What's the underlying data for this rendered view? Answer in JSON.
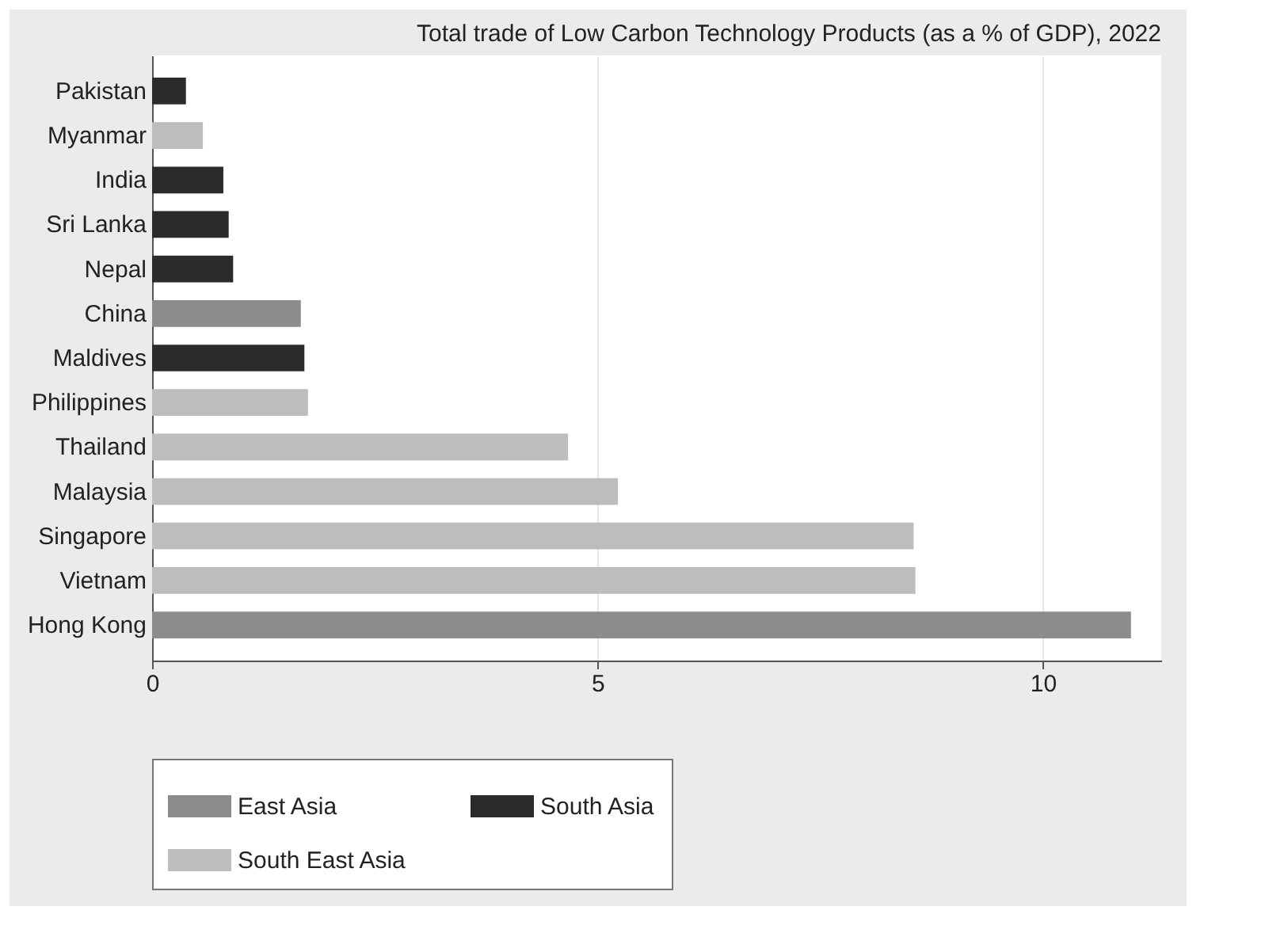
{
  "chart_data": {
    "type": "bar",
    "orientation": "horizontal",
    "title": "Total trade of Low Carbon Technology Products (as a % of GDP), 2022",
    "categories": [
      "Pakistan",
      "Myanmar",
      "India",
      "Sri Lanka",
      "Nepal",
      "China",
      "Maldives",
      "Philippines",
      "Thailand",
      "Malaysia",
      "Singapore",
      "Vietnam",
      "Hong Kong"
    ],
    "series": [
      {
        "name": "East Asia",
        "color": "#8c8c8c",
        "values": [
          null,
          null,
          null,
          null,
          null,
          1.67,
          null,
          null,
          null,
          null,
          null,
          null,
          10.99
        ]
      },
      {
        "name": "South Asia",
        "color": "#2b2b2b",
        "values": [
          0.38,
          null,
          0.8,
          0.86,
          0.91,
          null,
          1.71,
          null,
          null,
          null,
          null,
          null,
          null
        ]
      },
      {
        "name": "South East Asia",
        "color": "#bdbdbd",
        "values": [
          null,
          0.57,
          null,
          null,
          null,
          null,
          null,
          1.75,
          4.67,
          5.23,
          8.55,
          8.57,
          null
        ]
      }
    ],
    "xlim": [
      0,
      11.33
    ],
    "xticks": [
      0,
      5,
      10
    ],
    "grid": "x",
    "legend": "bottom"
  }
}
